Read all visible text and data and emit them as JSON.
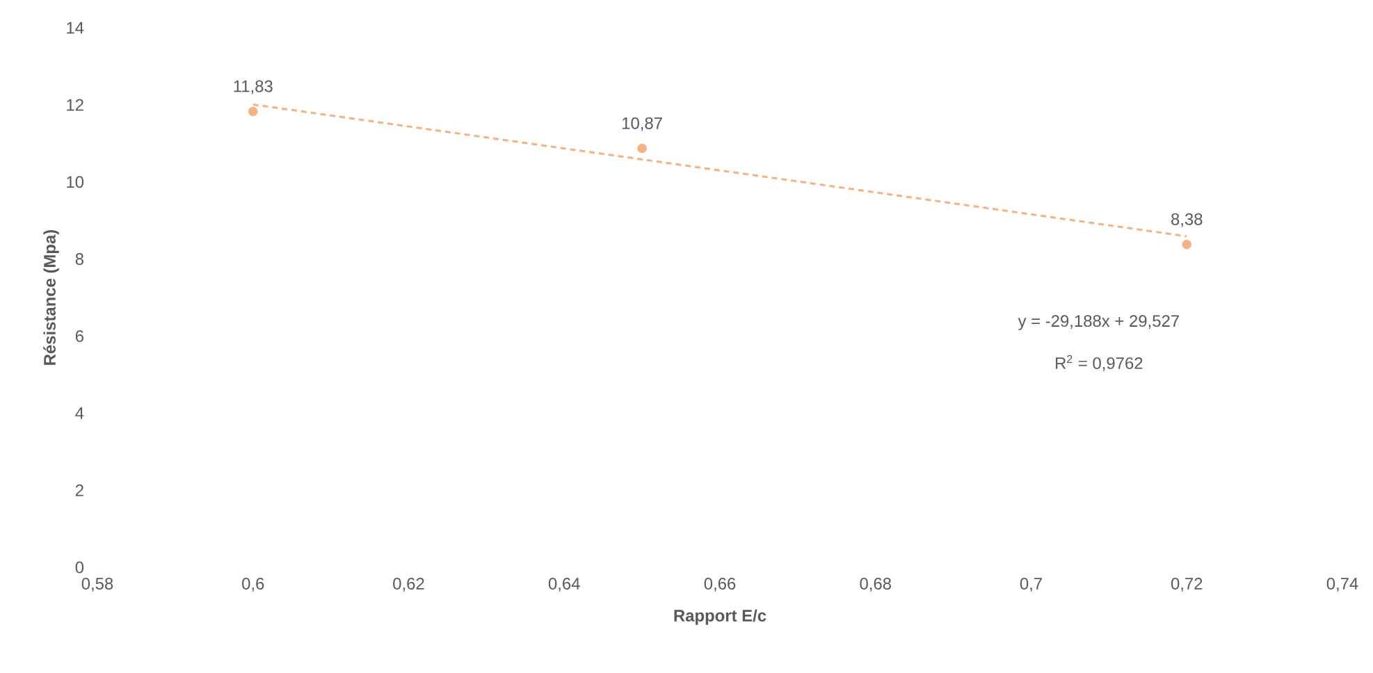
{
  "chart_data": {
    "type": "scatter",
    "xlabel": "Rapport E/c",
    "ylabel": "Résistance (Mpa)",
    "x": [
      0.6,
      0.65,
      0.72
    ],
    "series": [
      {
        "color": "#f4b183",
        "marker": "circle",
        "values": [
          11.83,
          10.87,
          8.38
        ],
        "value_labels": [
          "11,83",
          "10,87",
          "8,38"
        ]
      },
      {
        "type": "line",
        "x": [
          0.6,
          0.72
        ],
        "color": "#f4b183",
        "line_style": "dashed",
        "marker": "none",
        "values": [
          12.01,
          8.59
        ]
      }
    ],
    "annotations": [
      "y = -29,188x + 29,527",
      "R$^{2}$ = 0,9762"
    ],
    "xlim": [
      0.58,
      0.74
    ],
    "ylim": [
      0,
      14
    ],
    "xticks": [
      {
        "value": 0.58,
        "label": "0,58"
      },
      {
        "value": 0.6,
        "label": "0,6"
      },
      {
        "value": 0.62,
        "label": "0,62"
      },
      {
        "value": 0.64,
        "label": "0,64"
      },
      {
        "value": 0.66,
        "label": "0,66"
      },
      {
        "value": 0.68,
        "label": "0,68"
      },
      {
        "value": 0.7,
        "label": "0,7"
      },
      {
        "value": 0.72,
        "label": "0,72"
      },
      {
        "value": 0.74,
        "label": "0,74"
      }
    ],
    "yticks": [
      0,
      2,
      4,
      6,
      8,
      10,
      12,
      14
    ],
    "grid": false
  }
}
